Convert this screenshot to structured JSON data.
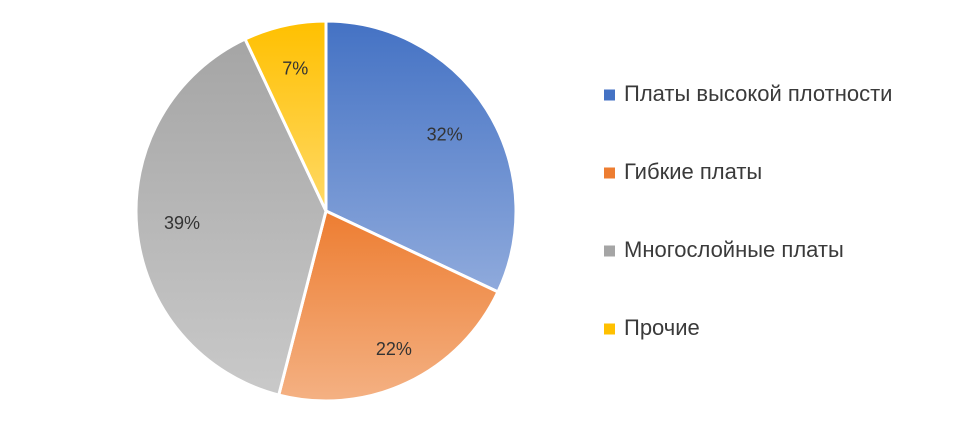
{
  "chart_data": {
    "type": "pie",
    "categories": [
      "Платы высокой плотности",
      "Гибкие платы",
      "Многослойные платы",
      "Прочие"
    ],
    "values": [
      32,
      22,
      39,
      7
    ],
    "data_labels": [
      "32%",
      "22%",
      "39%",
      "7%"
    ],
    "colors": [
      "#4472C4",
      "#ED7D31",
      "#A5A5A5",
      "#FFC000"
    ],
    "legend_position": "right"
  }
}
